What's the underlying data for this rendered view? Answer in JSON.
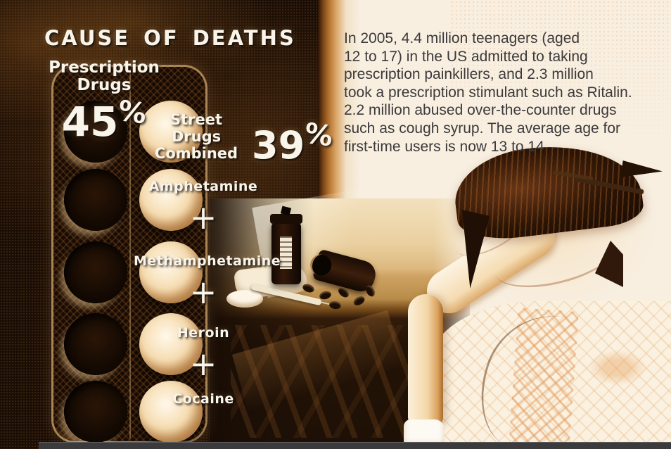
{
  "poster": {
    "title": "CAUSE OF DEATHS",
    "prescription": {
      "label_line1": "Prescription",
      "label_line2": "Drugs",
      "value": "45",
      "unit": "%"
    },
    "street": {
      "label_line1": "Street",
      "label_line2": "Drugs",
      "label_line3": "Combined",
      "value": "39",
      "unit": "%"
    },
    "street_components": [
      "Amphetamine",
      "Methamphetamine",
      "Heroin",
      "Cocaine"
    ],
    "plus_sign": "+"
  },
  "paragraph": {
    "lines": [
      "In 2005, 4.4 million teenagers (aged",
      "12 to 17) in the US admitted to taking",
      "prescription painkillers, and 2.3 million",
      "took a prescription stimulant such as Ritalin.",
      "2.2 million abused over-the-counter drugs",
      "such as cough syrup. The average age for",
      "first-time users is now 13 to 14."
    ]
  },
  "colors": {
    "dark_background": "#1a0d05",
    "cream_background": "#f8efe1",
    "sepia_accent": "#c98a4a",
    "light_text": "#faf5ea",
    "dark_text": "#3b393a",
    "bottom_bar": "#3b3b3d"
  },
  "chart_data": {
    "type": "infographic",
    "title": "CAUSE OF DEATHS",
    "categories": [
      "Prescription Drugs",
      "Street Drugs Combined"
    ],
    "values": [
      45,
      39
    ],
    "unit": "%",
    "street_drugs_combined_components": [
      "Amphetamine",
      "Methamphetamine",
      "Heroin",
      "Cocaine"
    ]
  }
}
